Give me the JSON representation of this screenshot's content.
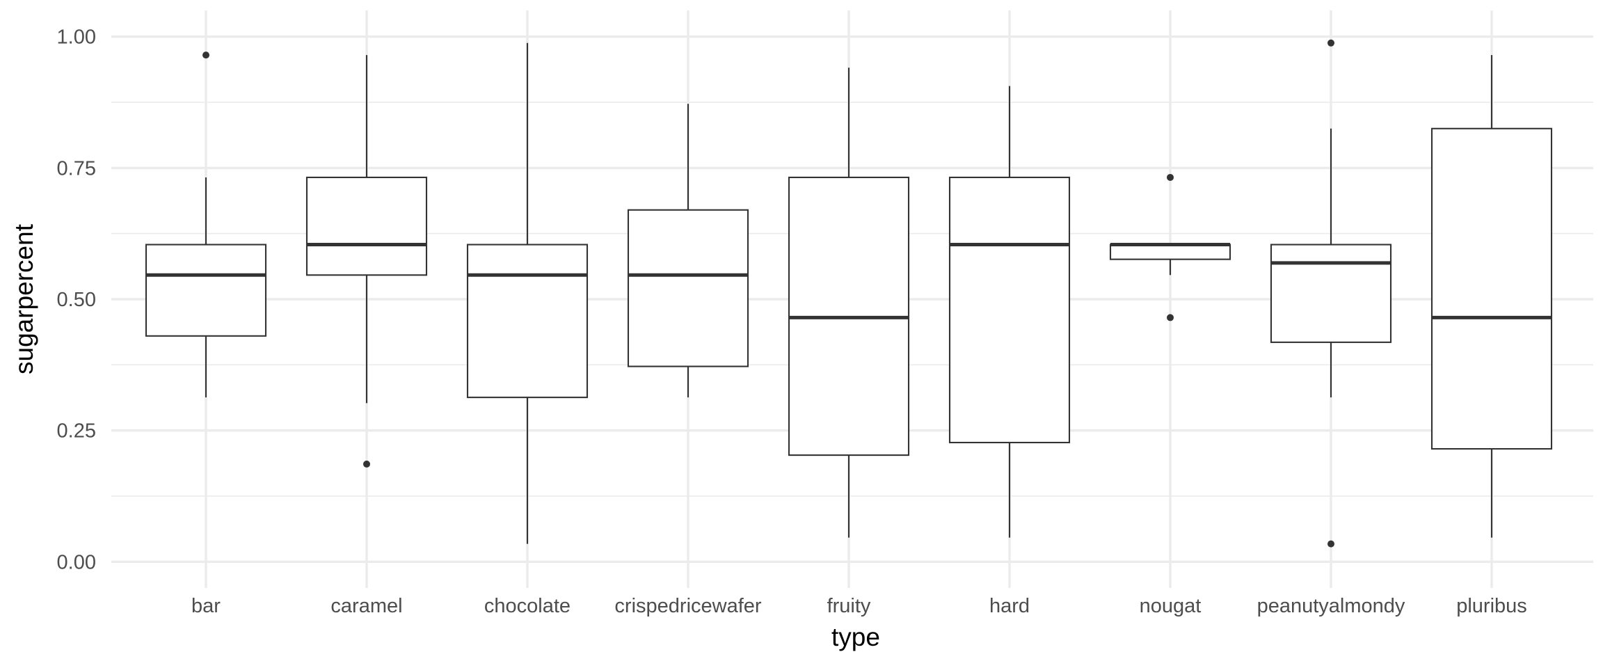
{
  "chart_data": {
    "type": "boxplot",
    "title": "",
    "xlabel": "type",
    "ylabel": "sugarpercent",
    "ylim": [
      -0.05,
      1.05
    ],
    "y_ticks": [
      0.0,
      0.25,
      0.5,
      0.75,
      1.0
    ],
    "y_tick_labels": [
      "0.00",
      "0.25",
      "0.50",
      "0.75",
      "1.00"
    ],
    "y_minor_ticks": [
      0.125,
      0.375,
      0.625,
      0.875
    ],
    "grid": true,
    "legend": "none",
    "categories": [
      "bar",
      "caramel",
      "chocolate",
      "crispedricewafer",
      "fruity",
      "hard",
      "nougat",
      "peanutyalmondy",
      "pluribus"
    ],
    "boxes": [
      {
        "category": "bar",
        "whisker_low": 0.313,
        "q1": 0.43,
        "median": 0.546,
        "q3": 0.604,
        "whisker_high": 0.732,
        "outliers": [
          0.965
        ]
      },
      {
        "category": "caramel",
        "whisker_low": 0.302,
        "q1": 0.546,
        "median": 0.604,
        "q3": 0.732,
        "whisker_high": 0.965,
        "outliers": [
          0.186
        ]
      },
      {
        "category": "chocolate",
        "whisker_low": 0.034,
        "q1": 0.313,
        "median": 0.546,
        "q3": 0.604,
        "whisker_high": 0.988,
        "outliers": []
      },
      {
        "category": "crispedricewafer",
        "whisker_low": 0.313,
        "q1": 0.372,
        "median": 0.546,
        "q3": 0.67,
        "whisker_high": 0.872,
        "outliers": []
      },
      {
        "category": "fruity",
        "whisker_low": 0.046,
        "q1": 0.203,
        "median": 0.465,
        "q3": 0.732,
        "whisker_high": 0.941,
        "outliers": []
      },
      {
        "category": "hard",
        "whisker_low": 0.046,
        "q1": 0.227,
        "median": 0.604,
        "q3": 0.732,
        "whisker_high": 0.906,
        "outliers": []
      },
      {
        "category": "nougat",
        "whisker_low": 0.546,
        "q1": 0.576,
        "median": 0.604,
        "q3": 0.604,
        "whisker_high": 0.604,
        "outliers": [
          0.732,
          0.465
        ]
      },
      {
        "category": "peanutyalmondy",
        "whisker_low": 0.313,
        "q1": 0.418,
        "median": 0.569,
        "q3": 0.604,
        "whisker_high": 0.825,
        "outliers": [
          0.988,
          0.034
        ]
      },
      {
        "category": "pluribus",
        "whisker_low": 0.046,
        "q1": 0.215,
        "median": 0.465,
        "q3": 0.825,
        "whisker_high": 0.965,
        "outliers": []
      }
    ]
  }
}
